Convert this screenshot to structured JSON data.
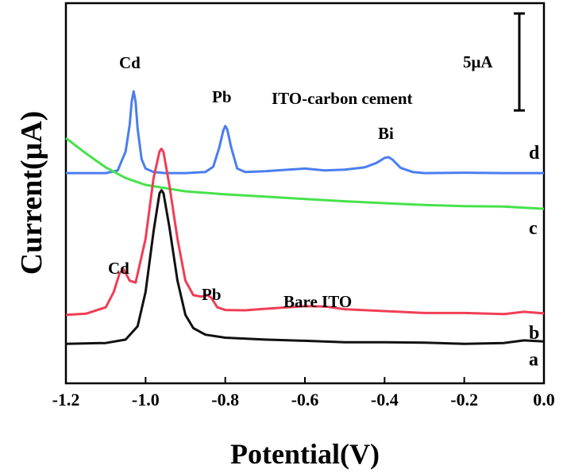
{
  "chart_data": {
    "type": "line",
    "xlabel": "Potential(V)",
    "ylabel": "Current(μA)",
    "xlim": [
      -1.2,
      0.0
    ],
    "ylim": [
      0,
      1
    ],
    "x_ticks": [
      "-1.2",
      "-1.0",
      "-0.8",
      "-0.6",
      "-0.4",
      "-0.2",
      "0.0"
    ],
    "y_ticks_shown": false,
    "grid": false,
    "scale_bar_label": "5μA",
    "scale_bar_fraction": 0.255,
    "annotations": {
      "upper_cd": "Cd",
      "upper_pb": "Pb",
      "upper_bi": "Bi",
      "upper_group": "ITO-carbon cement",
      "lower_cd": "Cd",
      "lower_pb": "Pb",
      "lower_group": "Bare ITO"
    },
    "series": [
      {
        "name": "d",
        "color": "#4a7ef0",
        "x": [
          -1.2,
          -1.1,
          -1.07,
          -1.05,
          -1.04,
          -1.035,
          -1.03,
          -1.025,
          -1.02,
          -1.01,
          -1.0,
          -0.98,
          -0.95,
          -0.9,
          -0.85,
          -0.83,
          -0.815,
          -0.805,
          -0.8,
          -0.795,
          -0.785,
          -0.77,
          -0.75,
          -0.7,
          -0.6,
          -0.55,
          -0.5,
          -0.45,
          -0.42,
          -0.4,
          -0.39,
          -0.38,
          -0.36,
          -0.33,
          -0.3,
          -0.2,
          -0.1,
          0.0
        ],
        "y": [
          0.553,
          0.553,
          0.56,
          0.61,
          0.68,
          0.74,
          0.768,
          0.74,
          0.67,
          0.59,
          0.565,
          0.556,
          0.553,
          0.553,
          0.556,
          0.57,
          0.62,
          0.665,
          0.677,
          0.668,
          0.62,
          0.565,
          0.556,
          0.558,
          0.565,
          0.56,
          0.562,
          0.568,
          0.58,
          0.593,
          0.595,
          0.588,
          0.567,
          0.556,
          0.553,
          0.554,
          0.553,
          0.553
        ]
      },
      {
        "name": "c",
        "color": "#46e24a",
        "x": [
          -1.2,
          -1.15,
          -1.1,
          -1.05,
          -1.0,
          -0.9,
          -0.8,
          -0.7,
          -0.6,
          -0.5,
          -0.4,
          -0.3,
          -0.2,
          -0.1,
          0.0
        ],
        "y": [
          0.645,
          0.605,
          0.568,
          0.54,
          0.522,
          0.505,
          0.497,
          0.491,
          0.485,
          0.479,
          0.474,
          0.469,
          0.466,
          0.465,
          0.459
        ]
      },
      {
        "name": "b",
        "color": "#f03e55",
        "x": [
          -1.2,
          -1.15,
          -1.1,
          -1.08,
          -1.065,
          -1.055,
          -1.04,
          -1.025,
          -1.0,
          -0.98,
          -0.965,
          -0.96,
          -0.955,
          -0.94,
          -0.92,
          -0.9,
          -0.88,
          -0.86,
          -0.845,
          -0.835,
          -0.82,
          -0.8,
          -0.75,
          -0.7,
          -0.6,
          -0.55,
          -0.5,
          -0.4,
          -0.3,
          -0.2,
          -0.1,
          -0.05,
          0.0
        ],
        "y": [
          0.18,
          0.183,
          0.2,
          0.24,
          0.29,
          0.3,
          0.27,
          0.265,
          0.38,
          0.54,
          0.61,
          0.617,
          0.608,
          0.52,
          0.38,
          0.27,
          0.232,
          0.228,
          0.232,
          0.225,
          0.2,
          0.193,
          0.192,
          0.196,
          0.203,
          0.202,
          0.195,
          0.19,
          0.185,
          0.185,
          0.182,
          0.188,
          0.184
        ]
      },
      {
        "name": "a",
        "color": "#111111",
        "x": [
          -1.2,
          -1.1,
          -1.05,
          -1.02,
          -1.0,
          -0.98,
          -0.965,
          -0.96,
          -0.955,
          -0.94,
          -0.92,
          -0.9,
          -0.88,
          -0.85,
          -0.8,
          -0.7,
          -0.6,
          -0.5,
          -0.4,
          -0.3,
          -0.2,
          -0.1,
          -0.05,
          0.0
        ],
        "y": [
          0.104,
          0.106,
          0.115,
          0.15,
          0.24,
          0.4,
          0.5,
          0.508,
          0.5,
          0.41,
          0.27,
          0.18,
          0.145,
          0.128,
          0.12,
          0.115,
          0.112,
          0.108,
          0.108,
          0.107,
          0.104,
          0.106,
          0.113,
          0.11
        ]
      }
    ]
  }
}
